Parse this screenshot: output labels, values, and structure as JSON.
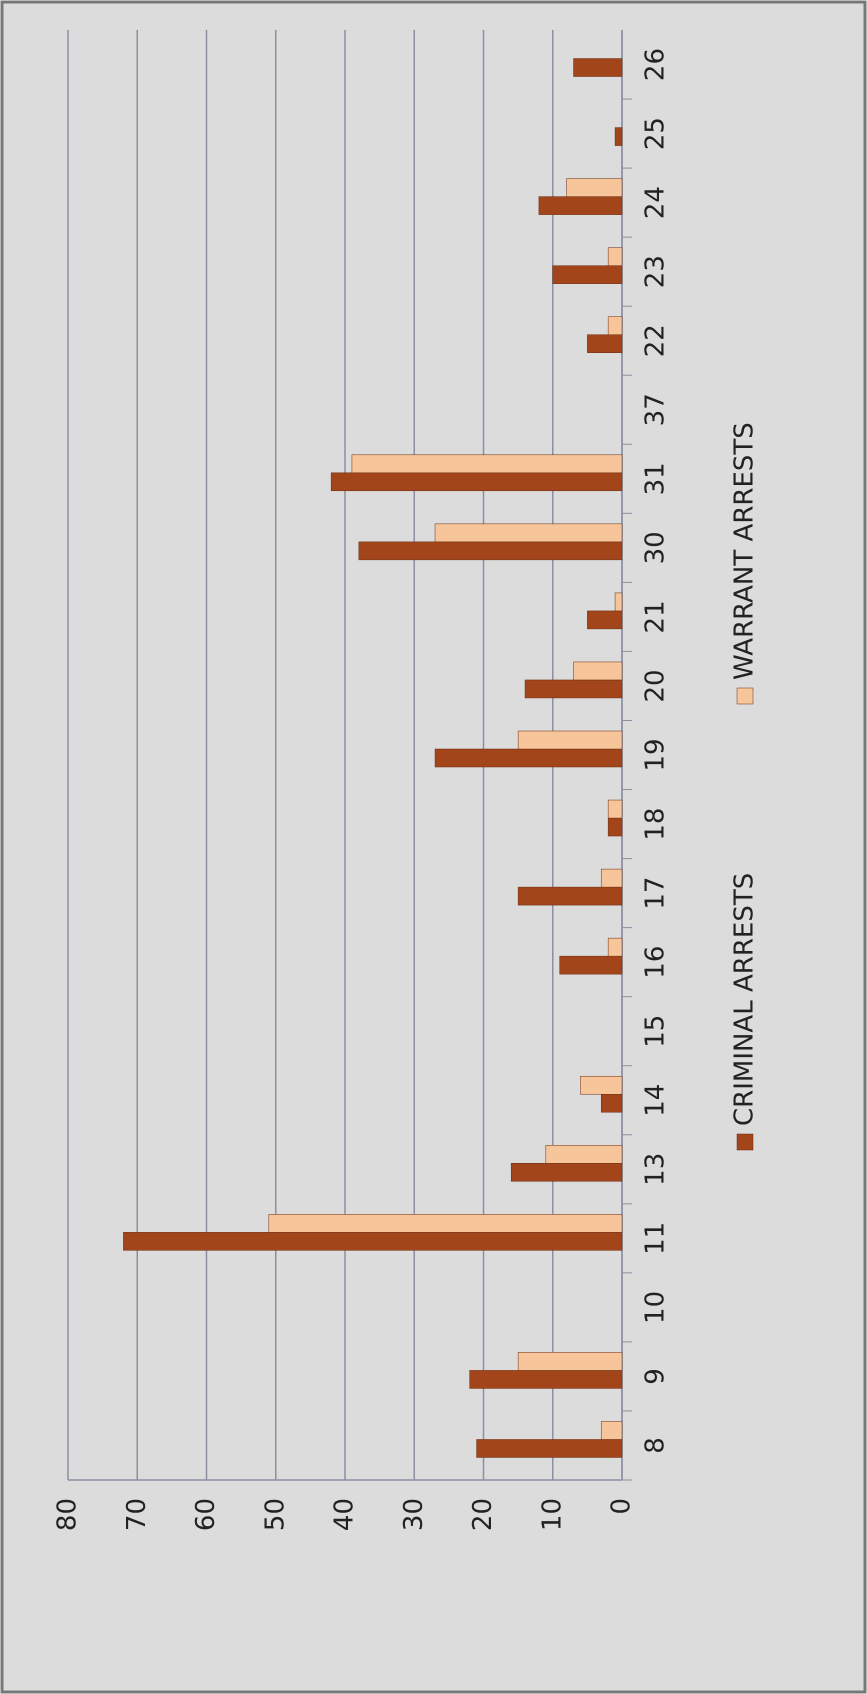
{
  "chart_data": {
    "type": "bar",
    "categories": [
      "8",
      "9",
      "10",
      "11",
      "13",
      "14",
      "15",
      "16",
      "17",
      "18",
      "19",
      "20",
      "21",
      "30",
      "31",
      "37",
      "22",
      "23",
      "24",
      "25",
      "26"
    ],
    "series": [
      {
        "name": "CRIMINAL ARRESTS",
        "color": "#a3451a",
        "values": [
          21,
          22,
          0,
          72,
          16,
          3,
          0,
          9,
          15,
          2,
          27,
          14,
          5,
          38,
          42,
          0,
          5,
          10,
          12,
          1,
          7
        ]
      },
      {
        "name": "WARRANT ARRESTS",
        "color": "#f6c59a",
        "values": [
          3,
          15,
          0,
          51,
          11,
          6,
          0,
          2,
          3,
          2,
          15,
          7,
          1,
          27,
          39,
          0,
          2,
          2,
          8,
          0,
          0
        ]
      }
    ],
    "ylim": [
      0,
      80
    ],
    "yticks": [
      0,
      10,
      20,
      30,
      40,
      50,
      60,
      70,
      80
    ],
    "grid": true,
    "legend": "bottom",
    "rotation": -90
  }
}
